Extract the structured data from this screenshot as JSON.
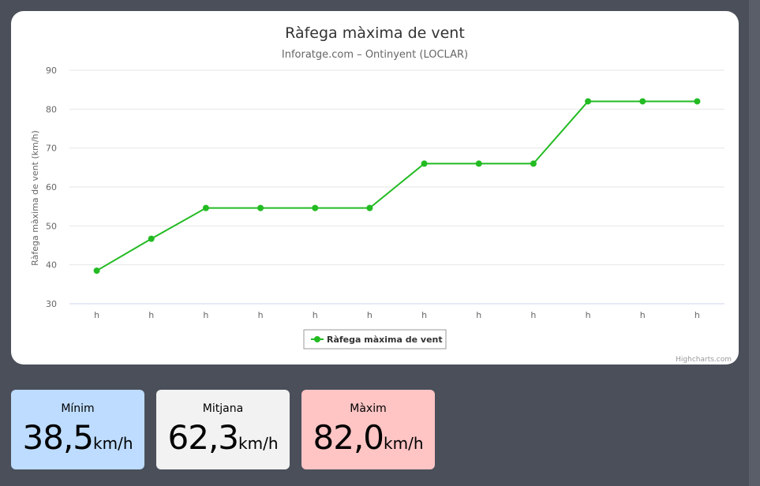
{
  "chart_data": {
    "type": "line",
    "title": "Ràfega màxima de vent",
    "subtitle": "Inforatge.com – Ontinyent (LOCLAR)",
    "ylabel": "Ràfega màxima de vent (km/h)",
    "xlabel": "",
    "ylim": [
      30,
      90
    ],
    "yticks": [
      30,
      40,
      50,
      60,
      70,
      80,
      90
    ],
    "categories": [
      "h",
      "h",
      "h",
      "h",
      "h",
      "h",
      "h",
      "h",
      "h",
      "h",
      "h",
      "h"
    ],
    "series": [
      {
        "name": "Ràfega màxima de vent",
        "color": "#22bb22",
        "values": [
          38.5,
          46.7,
          54.6,
          54.6,
          54.6,
          54.6,
          66.0,
          66.0,
          66.0,
          82.0,
          82.0,
          82.0
        ]
      }
    ],
    "legend": "bottom-center",
    "grid": true,
    "credits": "Highcharts.com"
  },
  "stats": {
    "min": {
      "label": "Mínim",
      "value": "38,5",
      "unit": "km/h",
      "color": "#bddcff"
    },
    "avg": {
      "label": "Mitjana",
      "value": "62,3",
      "unit": "km/h",
      "color": "#f2f2f2"
    },
    "max": {
      "label": "Màxim",
      "value": "82,0",
      "unit": "km/h",
      "color": "#ffc4c4"
    }
  }
}
